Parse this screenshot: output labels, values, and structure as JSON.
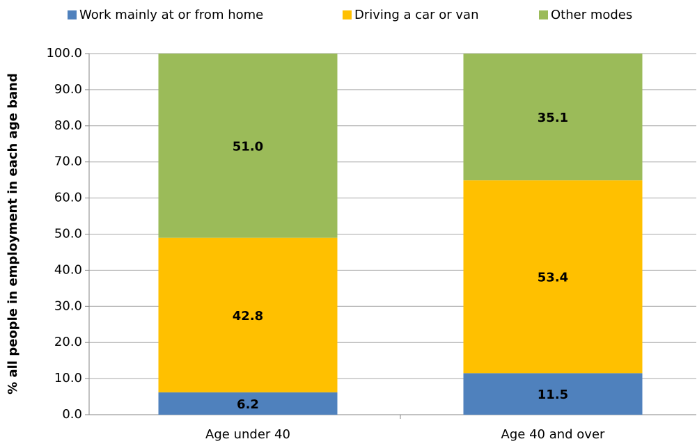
{
  "chart_data": {
    "type": "stacked_bar",
    "y_label": "% all people in employment in each age band",
    "categories": [
      "Age under 40",
      "Age 40 and over"
    ],
    "series": [
      {
        "name": "Work mainly at or from home",
        "color": "#4f81bd",
        "values": [
          6.2,
          11.5
        ],
        "value_labels": [
          "6.2",
          "11.5"
        ]
      },
      {
        "name": "Driving a car or van",
        "color": "#ffc000",
        "values": [
          42.8,
          53.4
        ],
        "value_labels": [
          "42.8",
          "53.4"
        ]
      },
      {
        "name": "Other modes",
        "color": "#9bbb59",
        "values": [
          51.0,
          35.1
        ],
        "value_labels": [
          "51.0",
          "35.1"
        ]
      }
    ],
    "ylim": [
      0,
      100
    ],
    "yticks": [
      {
        "value": 0,
        "label": "0.0"
      },
      {
        "value": 10,
        "label": "10.0"
      },
      {
        "value": 20,
        "label": "20.0"
      },
      {
        "value": 30,
        "label": "30.0"
      },
      {
        "value": 40,
        "label": "40.0"
      },
      {
        "value": 50,
        "label": "50.0"
      },
      {
        "value": 60,
        "label": "60.0"
      },
      {
        "value": 70,
        "label": "70.0"
      },
      {
        "value": 80,
        "label": "80.0"
      },
      {
        "value": 90,
        "label": "90.0"
      },
      {
        "value": 100,
        "label": "100.0"
      }
    ],
    "grid": true,
    "legend": "top"
  }
}
